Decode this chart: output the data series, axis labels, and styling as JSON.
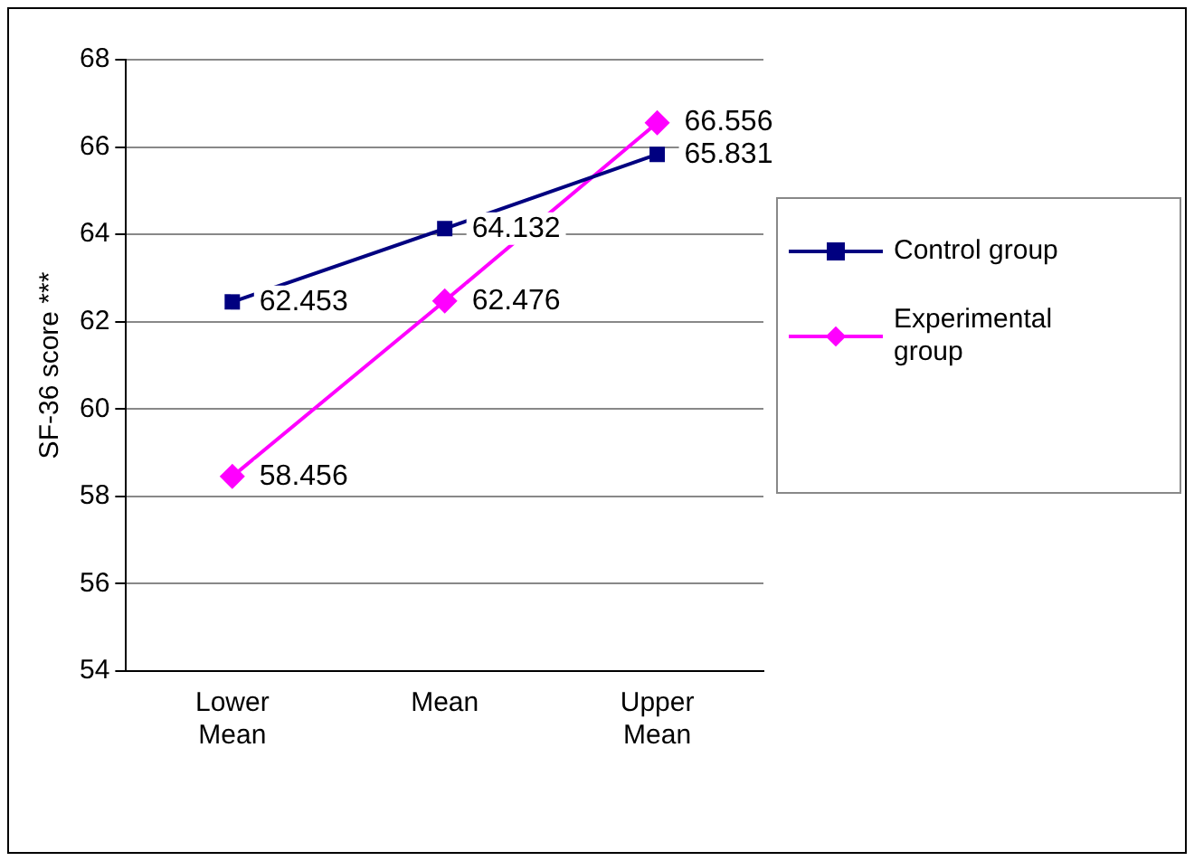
{
  "chart_data": {
    "type": "line",
    "categories": [
      "Lower\nMean",
      "Mean",
      "Upper\nMean"
    ],
    "ylabel": "SF-36 score ***",
    "ylim": [
      54,
      68
    ],
    "yticks": [
      54,
      56,
      58,
      60,
      62,
      64,
      66,
      68
    ],
    "grid": "y",
    "legend": "right",
    "data_labels": true,
    "series": [
      {
        "name": "Control group",
        "color": "#000080",
        "marker": "square",
        "values": [
          62.453,
          64.132,
          65.831
        ]
      },
      {
        "name": "Experimental group",
        "color": "#ff00ff",
        "marker": "diamond",
        "values": [
          58.456,
          62.476,
          66.556
        ]
      }
    ]
  }
}
